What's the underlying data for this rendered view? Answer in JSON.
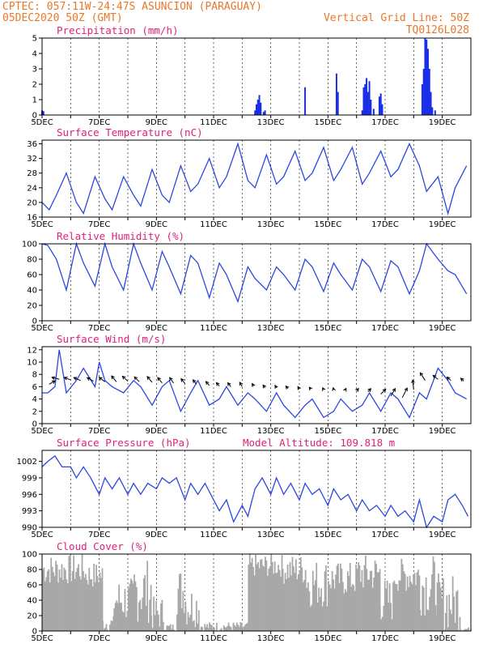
{
  "header": {
    "line1": "CPTEC:   057:11W-24:47S  ASUNCION (PARAGUAY)",
    "line2_left": "05DEC2020 50Z (GMT)",
    "line2_right": "Vertical Grid Line: 50Z",
    "line3_right": "TQ0126L028"
  },
  "colors": {
    "header": "#e8782a",
    "title": "#e0207a",
    "line": "#2b47e0",
    "precip": "#1a2ee8",
    "cloud": "#a8a8a8",
    "arrow": "#000000"
  },
  "x_tick_labels": [
    "5DEC",
    "7DEC",
    "9DEC",
    "11DEC",
    "13DEC",
    "15DEC",
    "17DEC",
    "19DEC"
  ],
  "chart_data": [
    {
      "type": "bar",
      "title": "Precipitation (mm/h)",
      "ylim": [
        0,
        5
      ],
      "yticks": [
        0,
        1,
        2,
        3,
        4,
        5
      ],
      "bars": [
        [
          5.0,
          0.3
        ],
        [
          5.05,
          0.25
        ],
        [
          12.45,
          0.3
        ],
        [
          12.5,
          0.7
        ],
        [
          12.55,
          1.0
        ],
        [
          12.6,
          1.3
        ],
        [
          12.65,
          0.8
        ],
        [
          12.75,
          0.2
        ],
        [
          12.8,
          0.3
        ],
        [
          14.2,
          1.8
        ],
        [
          15.3,
          2.7
        ],
        [
          15.35,
          1.5
        ],
        [
          16.2,
          0.3
        ],
        [
          16.25,
          1.8
        ],
        [
          16.3,
          2.0
        ],
        [
          16.35,
          2.4
        ],
        [
          16.4,
          1.5
        ],
        [
          16.45,
          2.2
        ],
        [
          16.5,
          1.0
        ],
        [
          16.6,
          0.4
        ],
        [
          16.8,
          1.2
        ],
        [
          16.85,
          1.4
        ],
        [
          16.9,
          0.7
        ],
        [
          18.3,
          2.0
        ],
        [
          18.35,
          3.0
        ],
        [
          18.4,
          5.0
        ],
        [
          18.45,
          4.9
        ],
        [
          18.5,
          4.3
        ],
        [
          18.55,
          3.0
        ],
        [
          18.6,
          1.5
        ],
        [
          18.65,
          0.5
        ],
        [
          18.75,
          0.3
        ]
      ]
    },
    {
      "type": "line",
      "title": "Surface Temperature (nC)",
      "ylim": [
        16,
        37
      ],
      "yticks": [
        16,
        20,
        24,
        28,
        32,
        36
      ],
      "x": [
        5.0,
        5.25,
        5.5,
        5.85,
        6.2,
        6.45,
        6.85,
        7.2,
        7.45,
        7.85,
        8.2,
        8.45,
        8.85,
        9.2,
        9.45,
        9.85,
        10.2,
        10.45,
        10.85,
        11.2,
        11.45,
        11.85,
        12.2,
        12.45,
        12.85,
        13.2,
        13.45,
        13.85,
        14.2,
        14.45,
        14.85,
        15.2,
        15.45,
        15.85,
        16.2,
        16.45,
        16.85,
        17.2,
        17.45,
        17.85,
        18.2,
        18.45,
        18.85,
        19.2,
        19.45,
        19.85
      ],
      "y": [
        20,
        18,
        22,
        28,
        20,
        17,
        27,
        21,
        18,
        27,
        22,
        19,
        29,
        22,
        20,
        30,
        23,
        25,
        32,
        24,
        27,
        36,
        26,
        24,
        33,
        25,
        27,
        34,
        26,
        28,
        35,
        26,
        29,
        35,
        25,
        28,
        34,
        27,
        29,
        36,
        30,
        23,
        27,
        17,
        24,
        30
      ]
    },
    {
      "type": "line",
      "title": "Relative Humidity (%)",
      "ylim": [
        0,
        100
      ],
      "yticks": [
        0,
        20,
        40,
        60,
        80,
        100
      ],
      "x": [
        5.0,
        5.2,
        5.5,
        5.85,
        6.2,
        6.45,
        6.85,
        7.2,
        7.45,
        7.85,
        8.2,
        8.45,
        8.85,
        9.2,
        9.45,
        9.85,
        10.2,
        10.45,
        10.85,
        11.2,
        11.45,
        11.85,
        12.2,
        12.45,
        12.85,
        13.2,
        13.45,
        13.85,
        14.2,
        14.45,
        14.85,
        15.2,
        15.45,
        15.85,
        16.2,
        16.45,
        16.85,
        17.2,
        17.45,
        17.85,
        18.2,
        18.45,
        18.85,
        19.2,
        19.45,
        19.85
      ],
      "y": [
        100,
        98,
        80,
        40,
        100,
        75,
        45,
        100,
        70,
        40,
        100,
        75,
        40,
        90,
        70,
        35,
        85,
        75,
        30,
        75,
        60,
        25,
        70,
        55,
        40,
        70,
        60,
        40,
        80,
        70,
        38,
        75,
        60,
        40,
        80,
        70,
        38,
        78,
        70,
        35,
        65,
        100,
        80,
        65,
        60,
        35
      ]
    },
    {
      "type": "line",
      "title": "Surface Wind (m/s)",
      "ylim": [
        0,
        12.5
      ],
      "yticks": [
        0,
        2,
        4,
        6,
        8,
        10,
        12
      ],
      "x": [
        5.0,
        5.2,
        5.45,
        5.6,
        5.85,
        6.2,
        6.45,
        6.85,
        7.0,
        7.2,
        7.45,
        7.85,
        8.2,
        8.45,
        8.85,
        9.2,
        9.45,
        9.85,
        10.2,
        10.45,
        10.85,
        11.2,
        11.45,
        11.85,
        12.2,
        12.45,
        12.85,
        13.2,
        13.45,
        13.85,
        14.2,
        14.45,
        14.85,
        15.2,
        15.45,
        15.85,
        16.2,
        16.45,
        16.85,
        17.2,
        17.45,
        17.85,
        18.2,
        18.45,
        18.85,
        19.2,
        19.45,
        19.85
      ],
      "y": [
        5,
        5,
        6,
        12,
        5,
        7,
        9,
        6,
        10,
        7,
        6,
        5,
        7,
        6,
        3,
        6,
        7,
        2,
        5,
        7,
        3,
        4,
        6,
        3,
        5,
        4,
        2,
        5,
        3,
        1,
        3,
        4,
        1,
        2,
        4,
        2,
        3,
        5,
        2,
        5,
        4,
        1,
        5,
        4,
        9,
        7,
        5,
        4
      ],
      "arrows": [
        [
          5.25,
          6.4,
          1.2,
          0.7
        ],
        [
          5.6,
          7.2,
          -1.5,
          0.4
        ],
        [
          6.0,
          7.1,
          -1.3,
          0.5
        ],
        [
          6.35,
          7.0,
          -1.4,
          0.6
        ],
        [
          6.8,
          6.9,
          -1.3,
          0.7
        ],
        [
          7.2,
          6.8,
          -1.2,
          0.9
        ],
        [
          7.6,
          6.8,
          -1.0,
          1.2
        ],
        [
          8.0,
          6.9,
          -1.1,
          1.0
        ],
        [
          8.4,
          6.8,
          -1.0,
          1.0
        ],
        [
          8.85,
          6.7,
          -1.0,
          1.2
        ],
        [
          9.2,
          6.6,
          -0.9,
          1.1
        ],
        [
          9.6,
          6.6,
          -0.8,
          1.1
        ],
        [
          10.0,
          6.5,
          -0.8,
          1.0
        ],
        [
          10.4,
          6.4,
          -0.7,
          0.9
        ],
        [
          10.85,
          6.2,
          -0.7,
          0.8
        ],
        [
          11.2,
          6.1,
          -0.6,
          0.7
        ],
        [
          11.6,
          6.0,
          -0.6,
          0.8
        ],
        [
          12.0,
          6.0,
          -0.5,
          0.9
        ],
        [
          12.4,
          6.1,
          -0.3,
          0.5
        ],
        [
          12.8,
          5.8,
          -0.4,
          0.6
        ],
        [
          13.2,
          5.8,
          -0.3,
          0.5
        ],
        [
          13.6,
          5.7,
          -0.4,
          0.5
        ],
        [
          14.0,
          5.6,
          -0.3,
          0.5
        ],
        [
          14.4,
          5.6,
          -0.3,
          0.4
        ],
        [
          14.85,
          5.5,
          -0.2,
          0.4
        ],
        [
          15.2,
          5.5,
          -0.1,
          0.4
        ],
        [
          15.6,
          5.4,
          0.2,
          0.4
        ],
        [
          16.0,
          5.3,
          0.4,
          0.5
        ],
        [
          16.4,
          5.2,
          0.6,
          0.6
        ],
        [
          16.85,
          4.8,
          1.0,
          1.0
        ],
        [
          17.2,
          4.5,
          0.9,
          1.5
        ],
        [
          17.6,
          4.2,
          1.0,
          2.0
        ],
        [
          18.0,
          5.5,
          -0.2,
          2.0
        ],
        [
          18.4,
          7.0,
          -1.0,
          1.6
        ],
        [
          18.85,
          7.2,
          -1.0,
          0.8
        ],
        [
          19.3,
          7.0,
          -0.8,
          0.7
        ],
        [
          19.75,
          6.9,
          -0.6,
          0.6
        ]
      ]
    },
    {
      "type": "line",
      "title": "Surface Pressure (hPa)",
      "annotation": "Model Altitude: 109.818  m",
      "ylim": [
        990,
        1004
      ],
      "yticks": [
        990,
        993,
        996,
        999,
        1002
      ],
      "ytick_labels": [
        "990",
        "993",
        "996",
        "999",
        "1002"
      ],
      "x": [
        5.0,
        5.2,
        5.45,
        5.7,
        6.0,
        6.2,
        6.45,
        6.7,
        7.0,
        7.2,
        7.45,
        7.7,
        8.0,
        8.2,
        8.45,
        8.7,
        9.0,
        9.2,
        9.45,
        9.7,
        10.0,
        10.2,
        10.45,
        10.7,
        11.0,
        11.2,
        11.45,
        11.7,
        12.0,
        12.2,
        12.45,
        12.7,
        13.0,
        13.2,
        13.45,
        13.7,
        14.0,
        14.2,
        14.45,
        14.7,
        15.0,
        15.2,
        15.45,
        15.7,
        16.0,
        16.2,
        16.45,
        16.7,
        17.0,
        17.2,
        17.45,
        17.7,
        18.0,
        18.2,
        18.45,
        18.7,
        19.0,
        19.2,
        19.45,
        19.7,
        19.9
      ],
      "y": [
        1001,
        1002,
        1003,
        1001,
        1001,
        999,
        1001,
        999,
        996,
        999,
        997,
        999,
        996,
        998,
        996,
        998,
        997,
        999,
        998,
        999,
        995,
        998,
        996,
        998,
        995,
        993,
        995,
        991,
        994,
        992,
        997,
        999,
        996,
        999,
        996,
        998,
        995,
        998,
        996,
        997,
        994,
        997,
        995,
        996,
        993,
        995,
        993,
        994,
        992,
        994,
        992,
        993,
        991,
        995,
        990,
        992,
        991,
        995,
        996,
        994,
        992
      ]
    },
    {
      "type": "bar",
      "title": "Cloud Cover (%)",
      "ylim": [
        0,
        100
      ],
      "yticks": [
        0,
        20,
        40,
        60,
        80,
        100
      ]
    }
  ]
}
